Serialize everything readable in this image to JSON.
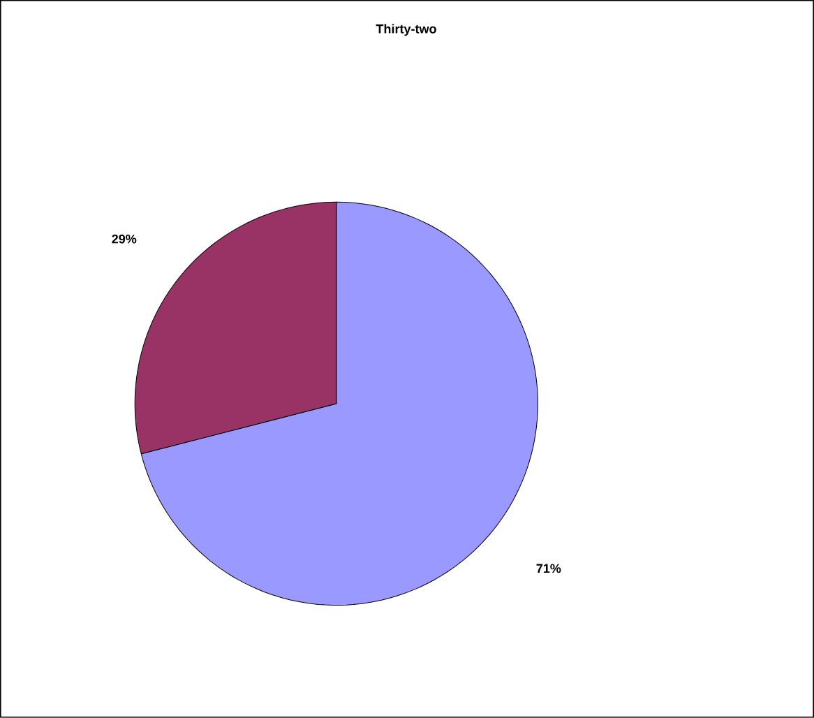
{
  "chart_data": {
    "type": "pie",
    "title": "Thirty-two",
    "categories": [
      null,
      null
    ],
    "values": [
      71,
      29
    ],
    "colors": [
      "#9999ff",
      "#993366"
    ],
    "value_labels": [
      "71%",
      "29%"
    ]
  }
}
